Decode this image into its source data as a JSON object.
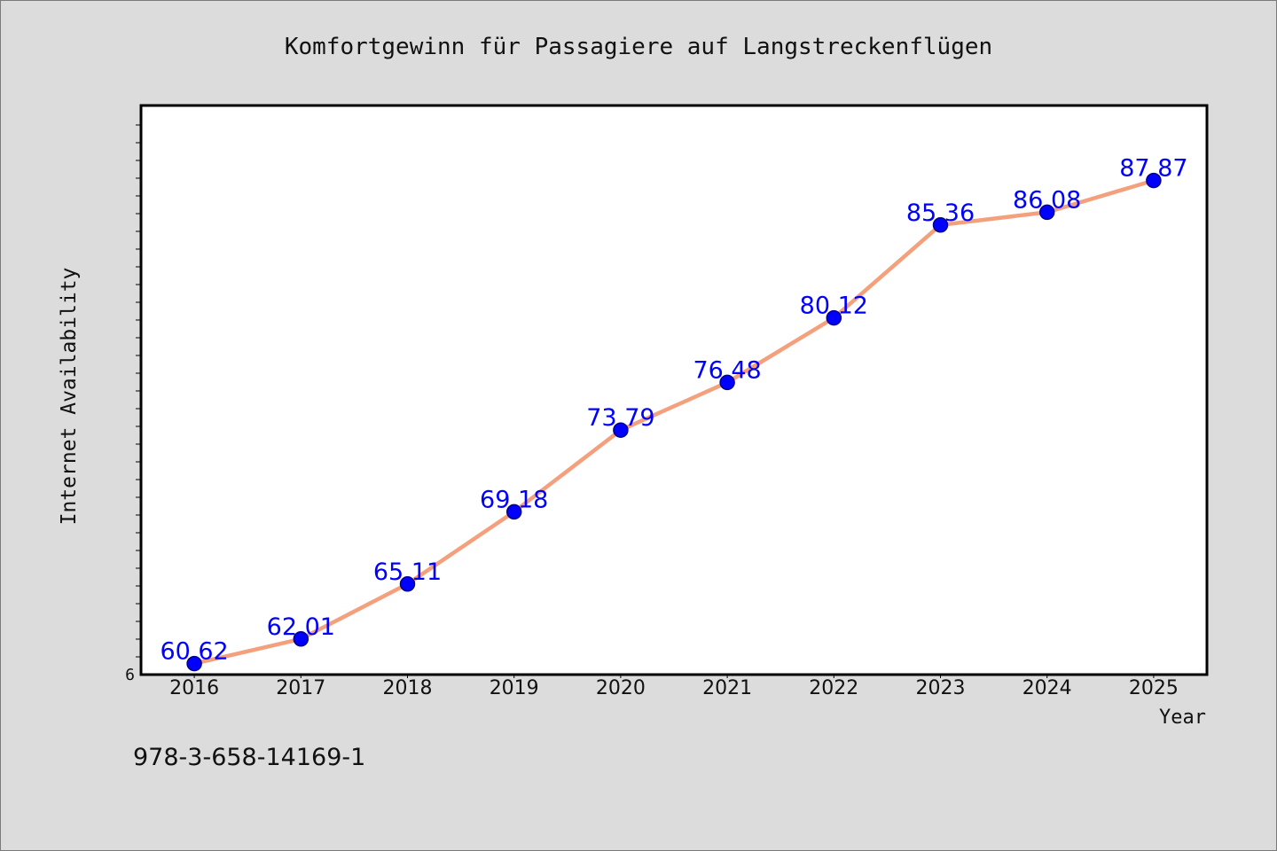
{
  "caption": "978-3-658-14169-1",
  "colors": {
    "background": "#dcdcdc",
    "plot_background": "#ffffff",
    "frame": "#000000",
    "line": "#f4a07c",
    "marker": "#0000ff",
    "marker_edge": "#00008b",
    "data_label": "#0000ff"
  },
  "chart_data": {
    "type": "line",
    "title": "Komfortgewinn für Passagiere auf Langstreckenflügen",
    "xlabel": "Year",
    "ylabel": "Internet Availability",
    "x": [
      2016,
      2017,
      2018,
      2019,
      2020,
      2021,
      2022,
      2023,
      2024,
      2025
    ],
    "series": [
      {
        "values": [
          60.62,
          62.01,
          65.11,
          69.18,
          73.79,
          76.48,
          80.12,
          85.36,
          86.08,
          87.87
        ]
      }
    ],
    "y_ticks": [
      {
        "value": 60,
        "label": "6"
      }
    ],
    "xlim": [
      2015.5,
      2025.5
    ],
    "ylim": [
      60,
      92.1
    ],
    "data_labels": true,
    "grid": false,
    "legend": "none"
  }
}
